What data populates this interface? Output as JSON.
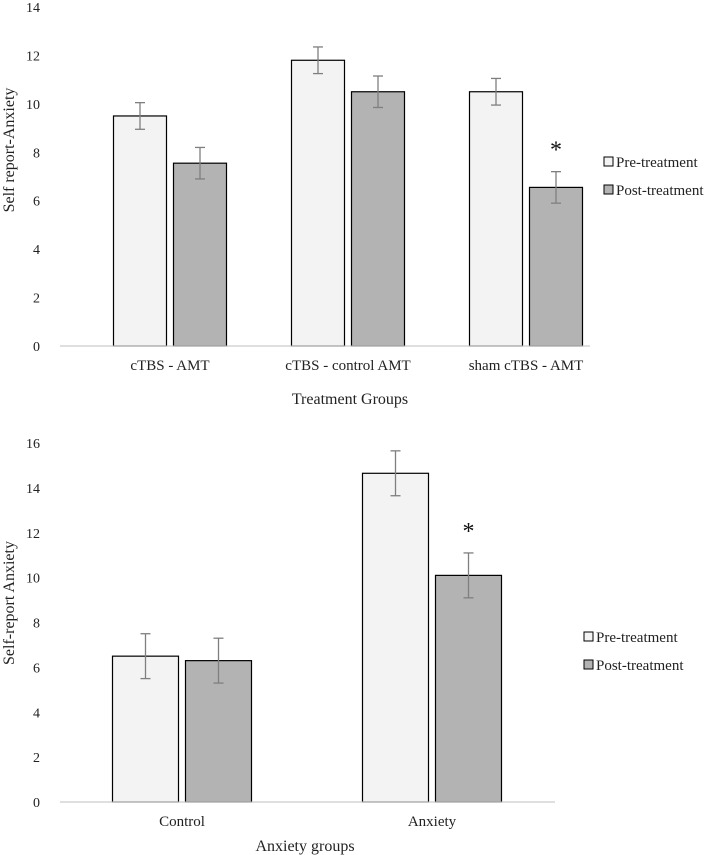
{
  "chart_data": [
    {
      "type": "bar",
      "title": "",
      "xlabel": "Treatment Groups",
      "ylabel": "Self report-Anxiety",
      "ylim": [
        0,
        14
      ],
      "yticks": [
        0,
        2,
        4,
        6,
        8,
        10,
        12,
        14
      ],
      "categories": [
        "cTBS - AMT",
        "cTBS - control AMT",
        "sham cTBS - AMT"
      ],
      "series": [
        {
          "name": "Pre-treatment",
          "color": "#f3f3f3",
          "values": [
            9.5,
            11.8,
            10.5
          ],
          "errors": [
            0.55,
            0.55,
            0.55
          ]
        },
        {
          "name": "Post-treatment",
          "color": "#b3b3b3",
          "values": [
            7.55,
            10.5,
            6.55
          ],
          "errors": [
            0.65,
            0.65,
            0.65
          ]
        }
      ],
      "annotations": [
        {
          "text": "*",
          "category": 2,
          "series": 1
        }
      ],
      "legend": "right"
    },
    {
      "type": "bar",
      "title": "",
      "xlabel": "Anxiety groups",
      "ylabel": "Self-report Anxiety",
      "ylim": [
        0,
        16
      ],
      "yticks": [
        0,
        2,
        4,
        6,
        8,
        10,
        12,
        14,
        16
      ],
      "categories": [
        "Control",
        "Anxiety"
      ],
      "series": [
        {
          "name": "Pre-treatment",
          "color": "#f3f3f3",
          "values": [
            6.5,
            14.65
          ],
          "errors": [
            1.0,
            1.0
          ]
        },
        {
          "name": "Post-treatment",
          "color": "#b3b3b3",
          "values": [
            6.3,
            10.1
          ],
          "errors": [
            1.0,
            1.0
          ]
        }
      ],
      "annotations": [
        {
          "text": "*",
          "category": 1,
          "series": 1
        }
      ],
      "legend": "right"
    }
  ]
}
